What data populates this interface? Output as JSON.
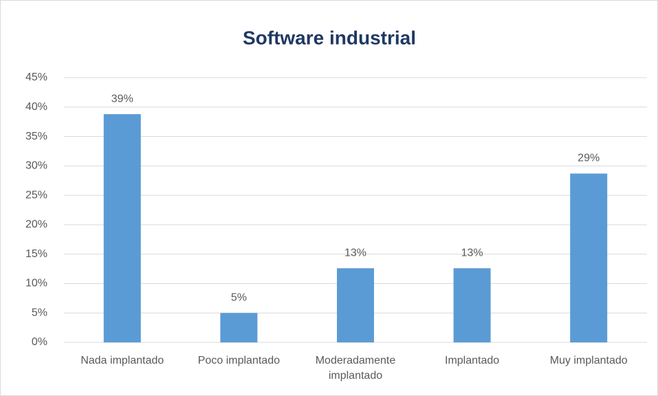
{
  "chart_data": {
    "type": "bar",
    "title": "Software industrial",
    "categories": [
      "Nada implantado",
      "Poco implantado",
      "Moderadamente implantado",
      "Implantado",
      "Muy implantado"
    ],
    "values": [
      38.8,
      5,
      12.6,
      12.6,
      28.7
    ],
    "value_labels": [
      "39%",
      "5%",
      "13%",
      "13%",
      "29%"
    ],
    "color": "#5b9bd5",
    "ylim": [
      0,
      45
    ],
    "yticks": [
      {
        "value": 0,
        "label": "0%"
      },
      {
        "value": 5,
        "label": "5%"
      },
      {
        "value": 10,
        "label": "10%"
      },
      {
        "value": 15,
        "label": "15%"
      },
      {
        "value": 20,
        "label": "20%"
      },
      {
        "value": 25,
        "label": "25%"
      },
      {
        "value": 30,
        "label": "30%"
      },
      {
        "value": 35,
        "label": "35%"
      },
      {
        "value": 40,
        "label": "40%"
      },
      {
        "value": 45,
        "label": "45%"
      }
    ],
    "grid": true
  }
}
